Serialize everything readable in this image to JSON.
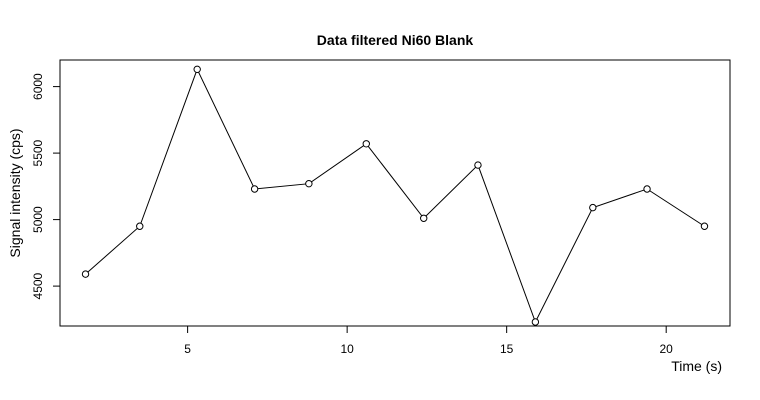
{
  "chart_data": {
    "type": "line",
    "title": "Data filtered Ni60 Blank",
    "xlabel": "Time (s)",
    "ylabel": "Signal intensity (cps)",
    "xlim": [
      1.0,
      22.0
    ],
    "ylim": [
      4200,
      6200
    ],
    "x_ticks": [
      5,
      10,
      15,
      20
    ],
    "y_ticks": [
      4500,
      5000,
      5500,
      6000
    ],
    "grid": false,
    "legend": "none",
    "marker": "open-circle",
    "line_color": "#000000",
    "series": [
      {
        "x": [
          1.8,
          3.5,
          5.3,
          7.1,
          8.8,
          10.6,
          12.4,
          14.1,
          15.9,
          17.7,
          19.4,
          21.2
        ],
        "values": [
          4590,
          4950,
          6130,
          5230,
          5270,
          5570,
          5010,
          5410,
          4230,
          5090,
          5230,
          4950
        ]
      }
    ]
  }
}
